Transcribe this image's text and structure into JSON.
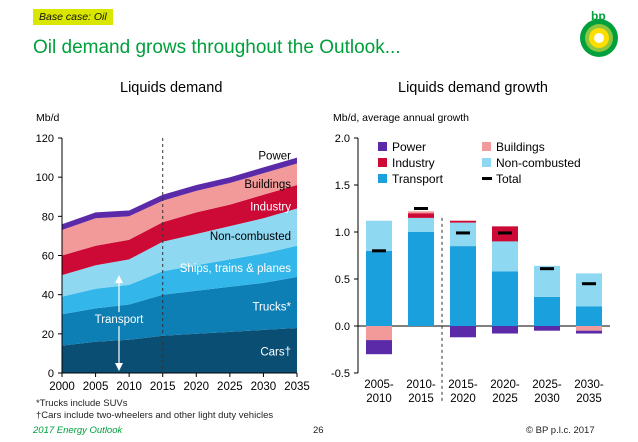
{
  "header": {
    "tag": "Base case: Oil",
    "title": "Oil demand grows throughout the Outlook...",
    "logo_text": "bp",
    "logo_icon": "bp-helios-icon"
  },
  "chart_data": [
    {
      "type": "area",
      "title": "Liquids demand",
      "ylabel": "Mb/d",
      "x": [
        2000,
        2005,
        2010,
        2015,
        2020,
        2025,
        2030,
        2035
      ],
      "ylim": [
        0,
        120
      ],
      "yticks": [
        0,
        20,
        40,
        60,
        80,
        100,
        120
      ],
      "stacked": true,
      "series": [
        {
          "name": "Cars†",
          "values": [
            14,
            16,
            17,
            19,
            20,
            21,
            22,
            23
          ],
          "color": "#0a4f73"
        },
        {
          "name": "Trucks*",
          "values": [
            16,
            17,
            18,
            21,
            22,
            23,
            24,
            26
          ],
          "color": "#0d7fb5"
        },
        {
          "name": "Ships, trains & planes",
          "values": [
            9,
            10,
            10,
            12,
            13,
            14,
            15,
            16
          ],
          "color": "#33b7ea"
        },
        {
          "name": "Non-combusted",
          "values": [
            11,
            12,
            13,
            15,
            16,
            17,
            18,
            19
          ],
          "color": "#8fd8f2"
        },
        {
          "name": "Industry",
          "values": [
            10,
            10,
            10,
            10,
            11,
            11,
            12,
            12
          ],
          "color": "#cc0a35"
        },
        {
          "name": "Buildings",
          "values": [
            13,
            14,
            12,
            11,
            11,
            11,
            11,
            11
          ],
          "color": "#f29a9a"
        },
        {
          "name": "Power",
          "values": [
            3,
            3,
            3,
            3,
            3,
            3,
            3,
            3
          ],
          "color": "#5b2aa8"
        }
      ],
      "annotation": "Transport",
      "forecast_start": 2015,
      "grid": false
    },
    {
      "type": "bar",
      "title": "Liquids demand growth",
      "ylabel": "Mb/d, average annual growth",
      "categories": [
        "2005-\n2010",
        "2010-\n2015",
        "2015-\n2020",
        "2020-\n2025",
        "2025-\n2030",
        "2030-\n2035"
      ],
      "category_lines": [
        [
          "2005-",
          "2010"
        ],
        [
          "2010-",
          "2015"
        ],
        [
          "2015-",
          "2020"
        ],
        [
          "2020-",
          "2025"
        ],
        [
          "2025-",
          "2030"
        ],
        [
          "2030-",
          "2035"
        ]
      ],
      "ylim": [
        -0.5,
        2.0
      ],
      "yticks": [
        "2.0",
        "1.5",
        "1.0",
        "0.5",
        "0.0",
        "-0.5"
      ],
      "ytick_values": [
        2.0,
        1.5,
        1.0,
        0.5,
        0.0,
        -0.5
      ],
      "stacked": true,
      "series": [
        {
          "name": "Power",
          "values": [
            -0.15,
            0.0,
            -0.12,
            -0.08,
            -0.05,
            -0.03
          ],
          "color": "#5b2aa8"
        },
        {
          "name": "Buildings",
          "values": [
            -0.15,
            0.02,
            0.0,
            0.0,
            0.0,
            -0.05
          ],
          "color": "#f29a9a"
        },
        {
          "name": "Industry",
          "values": [
            0.0,
            0.05,
            0.02,
            0.16,
            0.0,
            0.0
          ],
          "color": "#cc0a35"
        },
        {
          "name": "Non-combusted",
          "values": [
            0.32,
            0.15,
            0.25,
            0.32,
            0.33,
            0.35
          ],
          "color": "#8fd8f2"
        },
        {
          "name": "Transport",
          "values": [
            0.8,
            1.0,
            0.85,
            0.58,
            0.31,
            0.21
          ],
          "color": "#1aa0dd"
        }
      ],
      "total": {
        "name": "Total",
        "values": [
          0.8,
          1.25,
          0.99,
          0.99,
          0.61,
          0.45
        ]
      },
      "legend": "top, two columns",
      "forecast_start_index": 2,
      "grid": false
    }
  ],
  "footnotes": {
    "trucks": "*Trucks include SUVs",
    "cars": "†Cars include two-wheelers and other light duty vehicles"
  },
  "footer": {
    "left": "2017 Energy Outlook",
    "page": "26",
    "right": "© BP p.l.c. 2017"
  }
}
